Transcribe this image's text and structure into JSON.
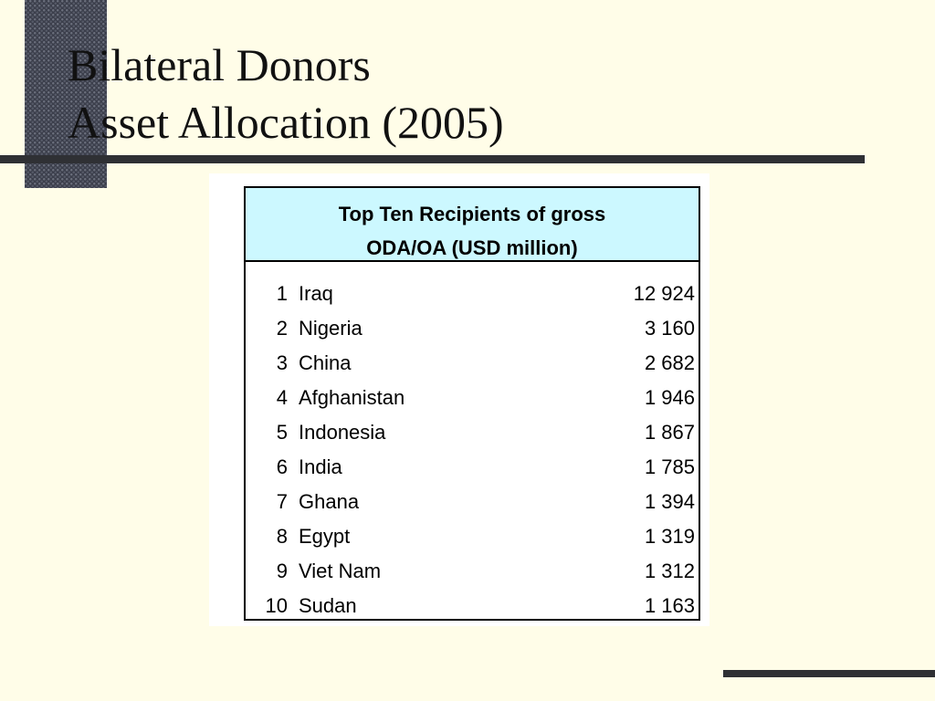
{
  "slide": {
    "title_line1": "Bilateral Donors",
    "title_line2": "Asset Allocation (2005)"
  },
  "table": {
    "header_line1": "Top Ten Recipients of gross",
    "header_line2": "ODA/OA (USD million)",
    "header_color": "#ccf8ff",
    "rows": [
      {
        "rank": "1",
        "country": "Iraq",
        "value": "12 924"
      },
      {
        "rank": "2",
        "country": "Nigeria",
        "value": "3 160"
      },
      {
        "rank": "3",
        "country": "China",
        "value": "2 682"
      },
      {
        "rank": "4",
        "country": "Afghanistan",
        "value": "1 946"
      },
      {
        "rank": "5",
        "country": "Indonesia",
        "value": "1 867"
      },
      {
        "rank": "6",
        "country": "India",
        "value": "1 785"
      },
      {
        "rank": "7",
        "country": "Ghana",
        "value": "1 394"
      },
      {
        "rank": "8",
        "country": "Egypt",
        "value": "1 319"
      },
      {
        "rank": "9",
        "country": "Viet Nam",
        "value": "1 312"
      },
      {
        "rank": "10",
        "country": "Sudan",
        "value": "1 163"
      }
    ]
  },
  "theme": {
    "background": "#fffde8",
    "rule_color": "#2f3034"
  }
}
